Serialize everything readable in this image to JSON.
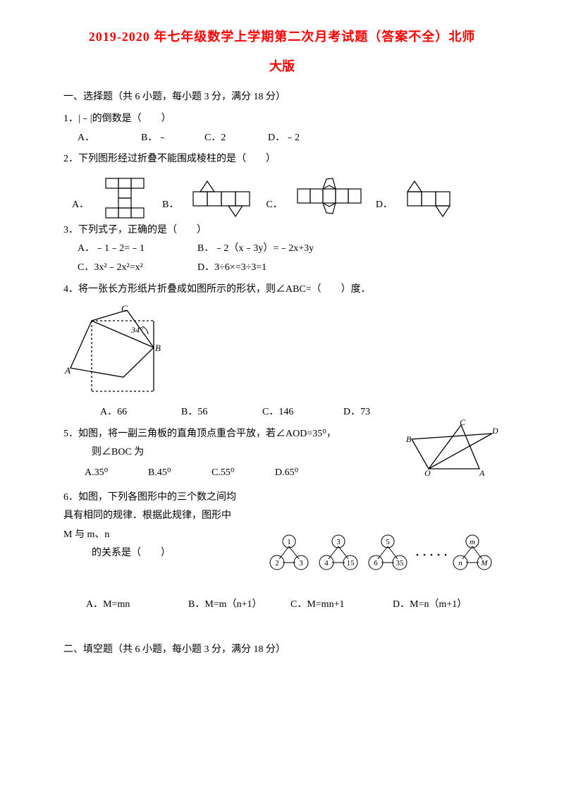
{
  "title1": "2019-2020 年七年级数学上学期第二次月考试题（答案不全）北师",
  "title2": "大版",
  "section1": "一、选择题（共 6 小题，每小题 3 分，满分 18 分）",
  "q1": {
    "stem": "1．|﹣|的倒数是（　　）",
    "A": "A．",
    "B": "B．﹣",
    "C": "C．2",
    "D": "D．﹣2"
  },
  "q2": {
    "stem": "2．下列图形经过折叠不能围成棱柱的是（　　）",
    "A": "A．",
    "B": "B．",
    "C": "C．",
    "D": "D．"
  },
  "q3": {
    "stem": "3．下列式子，正确的是（　　）",
    "A": "A．﹣1﹣2=﹣1",
    "B": "B．﹣2（x﹣3y）=﹣2x+3y",
    "C": "C．3x²﹣2x²=x²",
    "D": "D．3÷6×=3÷3=1"
  },
  "q4": {
    "stem": "4．将一张长方形纸片折叠成如图所示的形状，则∠ABC=（　　）度．",
    "A": "A．66",
    "B": "B．56",
    "C": "C．146",
    "D": "D．73",
    "label_angle": "34°",
    "lA": "A",
    "lB": "B",
    "lC": "C"
  },
  "q5": {
    "stem": "5．如图，将一副三角板的直角顶点重合平放，若∠AOD=35⁰，",
    "stem2": "则∠BOC 为",
    "A": "A.35⁰",
    "B": "B.45⁰",
    "C": "C.55⁰",
    "D": "D.65⁰",
    "lA": "A",
    "lB": "B",
    "lC": "C",
    "lD": "D",
    "lO": "O"
  },
  "q6": {
    "stem": "6．如图，下列各图形中的三个数之间均具有相同的规律．根据此规律，图形中 M 与 m、n",
    "stem2": "的关系是（　　）",
    "A": "A．M=mn",
    "B": "B．M=m（n+1）",
    "C": "C．M=mn+1",
    "D": "D．M=n（m+1）",
    "groups": [
      {
        "t": "1",
        "l": "2",
        "r": "3"
      },
      {
        "t": "3",
        "l": "4",
        "r": "15"
      },
      {
        "t": "5",
        "l": "6",
        "r": "35"
      },
      {
        "t": "m",
        "l": "n",
        "r": "M"
      }
    ]
  },
  "section2": "二、填空题（共 6 小题，每小题 3 分，满分 18 分）",
  "colors": {
    "stroke": "#000000",
    "fill": "#ffffff",
    "bg": "#ffffff"
  }
}
